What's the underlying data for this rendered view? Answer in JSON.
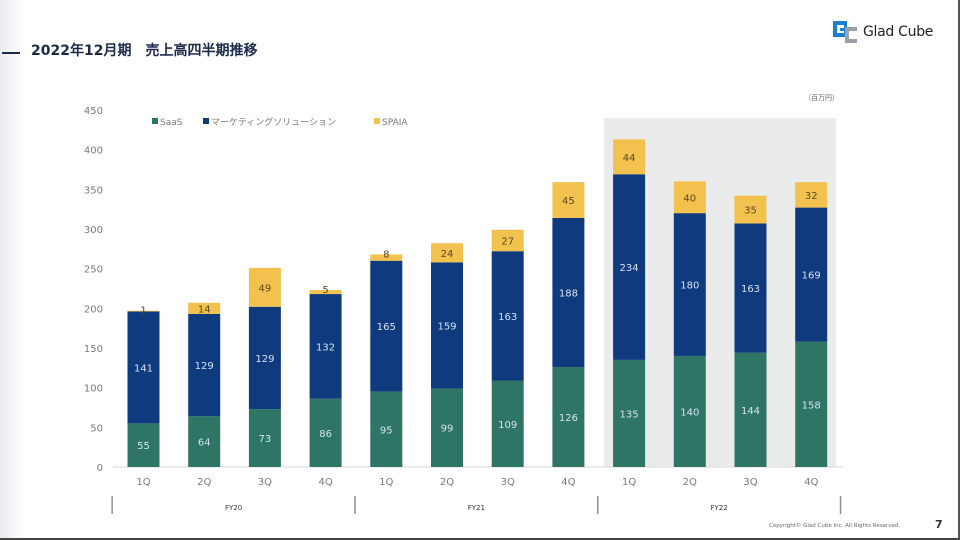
{
  "header": {
    "title": "2022年12月期　売上高四半期推移",
    "logo_text": "Glad Cube"
  },
  "unit_label": "（百万円）",
  "footer": {
    "copyright": "Copyright© Glad Cube Inc. All Rights Reserved.",
    "page_number": "7"
  },
  "colors": {
    "saas": "#2e7566",
    "marketing": "#0f3b7e",
    "spaia": "#f2c14e",
    "highlight_bg": "#eaebeb",
    "axis_text": "#7a7a7a"
  },
  "chart_data": {
    "type": "bar",
    "stacked": true,
    "title": "2022年12月期　売上高四半期推移",
    "ylabel": "百万円",
    "xlabel": "",
    "ylim": [
      0,
      450
    ],
    "yticks": [
      0,
      50,
      100,
      150,
      200,
      250,
      300,
      350,
      400,
      450
    ],
    "grid": false,
    "legend_position": "top-left",
    "categories": [
      "1Q",
      "2Q",
      "3Q",
      "4Q",
      "1Q",
      "2Q",
      "3Q",
      "4Q",
      "1Q",
      "2Q",
      "3Q",
      "4Q"
    ],
    "groups": [
      {
        "label": "FY20",
        "start": 0,
        "end": 3
      },
      {
        "label": "FY21",
        "start": 4,
        "end": 7
      },
      {
        "label": "FY22",
        "start": 8,
        "end": 11
      }
    ],
    "highlight_group": "FY22",
    "series": [
      {
        "name": "SaaS",
        "color_key": "saas",
        "values": [
          55,
          64,
          73,
          86,
          95,
          99,
          109,
          126,
          135,
          140,
          144,
          158
        ]
      },
      {
        "name": "マーケティングソリューション",
        "color_key": "marketing",
        "values": [
          141,
          129,
          129,
          132,
          165,
          159,
          163,
          188,
          234,
          180,
          163,
          169
        ]
      },
      {
        "name": "SPAIA",
        "color_key": "spaia",
        "values": [
          1,
          14,
          49,
          5,
          8,
          24,
          27,
          45,
          44,
          40,
          35,
          32
        ]
      }
    ]
  }
}
